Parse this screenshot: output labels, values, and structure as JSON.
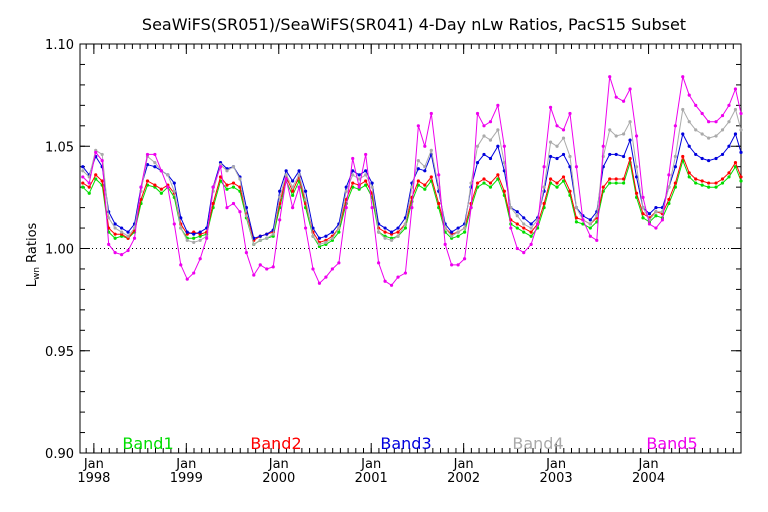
{
  "chart_data": {
    "type": "line",
    "title": "SeaWiFS(SR051)/SeaWiFS(SR041) 4-Day nLw Ratios, PacS15 Subset",
    "ylabel": "Lwn Ratios",
    "ylabel_main": "L",
    "ylabel_sub": "wn",
    "ylabel_rest": " Ratios",
    "xlabel": "",
    "xlim": [
      1997.85,
      2005.0
    ],
    "ylim": [
      0.9,
      1.1
    ],
    "yticks": [
      "0.90",
      "0.95",
      "1.00",
      "1.05",
      "1.10"
    ],
    "ytick_values": [
      0.9,
      0.95,
      1.0,
      1.05,
      1.1
    ],
    "xticks": [
      {
        "month": "Jan",
        "year": "1998",
        "x": 1998.0
      },
      {
        "month": "Jan",
        "year": "1999",
        "x": 1999.0
      },
      {
        "month": "Jan",
        "year": "2000",
        "x": 2000.0
      },
      {
        "month": "Jan",
        "year": "2001",
        "x": 2001.0
      },
      {
        "month": "Jan",
        "year": "2002",
        "x": 2002.0
      },
      {
        "month": "Jan",
        "year": "2003",
        "x": 2003.0
      },
      {
        "month": "Jan",
        "year": "2004",
        "x": 2004.0
      }
    ],
    "reference_line": {
      "y": 1.0,
      "style": "dotted"
    },
    "grid": false,
    "x": [
      1997.88,
      1997.95,
      1998.02,
      1998.09,
      1998.16,
      1998.23,
      1998.3,
      1998.37,
      1998.44,
      1998.51,
      1998.58,
      1998.66,
      1998.73,
      1998.8,
      1998.87,
      1998.94,
      1999.01,
      1999.08,
      1999.15,
      1999.22,
      1999.29,
      1999.37,
      1999.44,
      1999.51,
      1999.58,
      1999.65,
      1999.73,
      1999.8,
      1999.87,
      1999.94,
      2000.01,
      2000.08,
      2000.15,
      2000.22,
      2000.29,
      2000.37,
      2000.44,
      2000.51,
      2000.58,
      2000.65,
      2000.73,
      2000.8,
      2000.87,
      2000.94,
      2001.01,
      2001.08,
      2001.15,
      2001.22,
      2001.29,
      2001.37,
      2001.44,
      2001.51,
      2001.58,
      2001.65,
      2001.73,
      2001.8,
      2001.87,
      2001.94,
      2002.01,
      2002.08,
      2002.15,
      2002.22,
      2002.29,
      2002.37,
      2002.44,
      2002.51,
      2002.58,
      2002.65,
      2002.73,
      2002.8,
      2002.87,
      2002.94,
      2003.01,
      2003.08,
      2003.15,
      2003.22,
      2003.29,
      2003.37,
      2003.44,
      2003.51,
      2003.58,
      2003.65,
      2003.73,
      2003.8,
      2003.87,
      2003.94,
      2004.01,
      2004.08,
      2004.15,
      2004.22,
      2004.29,
      2004.37,
      2004.44,
      2004.51,
      2004.58,
      2004.65,
      2004.73,
      2004.8,
      2004.87,
      2004.94,
      2005.0
    ],
    "series": [
      {
        "name": "Band1",
        "color": "#00dd00",
        "values": [
          1.03,
          1.027,
          1.034,
          1.031,
          1.008,
          1.005,
          1.006,
          1.005,
          1.008,
          1.022,
          1.031,
          1.03,
          1.027,
          1.03,
          1.025,
          1.01,
          1.005,
          1.005,
          1.006,
          1.007,
          1.02,
          1.033,
          1.029,
          1.03,
          1.028,
          1.015,
          1.002,
          1.004,
          1.005,
          1.006,
          1.02,
          1.033,
          1.026,
          1.033,
          1.02,
          1.006,
          1.001,
          1.002,
          1.004,
          1.008,
          1.022,
          1.03,
          1.029,
          1.031,
          1.025,
          1.008,
          1.006,
          1.005,
          1.006,
          1.01,
          1.023,
          1.031,
          1.029,
          1.033,
          1.02,
          1.008,
          1.005,
          1.006,
          1.008,
          1.02,
          1.03,
          1.032,
          1.03,
          1.034,
          1.026,
          1.012,
          1.01,
          1.008,
          1.006,
          1.01,
          1.02,
          1.032,
          1.03,
          1.033,
          1.026,
          1.013,
          1.012,
          1.01,
          1.013,
          1.028,
          1.032,
          1.032,
          1.032,
          1.042,
          1.025,
          1.015,
          1.013,
          1.016,
          1.015,
          1.022,
          1.03,
          1.043,
          1.035,
          1.032,
          1.031,
          1.03,
          1.03,
          1.032,
          1.035,
          1.04,
          1.033
        ]
      },
      {
        "name": "Band2",
        "color": "#ff0000",
        "values": [
          1.032,
          1.03,
          1.036,
          1.033,
          1.01,
          1.007,
          1.007,
          1.005,
          1.009,
          1.024,
          1.033,
          1.031,
          1.029,
          1.031,
          1.027,
          1.012,
          1.007,
          1.008,
          1.007,
          1.008,
          1.022,
          1.035,
          1.031,
          1.032,
          1.03,
          1.017,
          1.004,
          1.006,
          1.007,
          1.008,
          1.022,
          1.035,
          1.028,
          1.035,
          1.022,
          1.008,
          1.003,
          1.004,
          1.006,
          1.01,
          1.024,
          1.032,
          1.031,
          1.033,
          1.027,
          1.01,
          1.008,
          1.007,
          1.008,
          1.012,
          1.025,
          1.033,
          1.031,
          1.035,
          1.022,
          1.01,
          1.007,
          1.008,
          1.01,
          1.022,
          1.032,
          1.034,
          1.032,
          1.036,
          1.028,
          1.014,
          1.012,
          1.01,
          1.008,
          1.012,
          1.022,
          1.034,
          1.032,
          1.035,
          1.028,
          1.015,
          1.014,
          1.012,
          1.015,
          1.03,
          1.034,
          1.034,
          1.034,
          1.044,
          1.027,
          1.017,
          1.015,
          1.018,
          1.017,
          1.024,
          1.032,
          1.045,
          1.037,
          1.034,
          1.033,
          1.032,
          1.032,
          1.034,
          1.037,
          1.042,
          1.035
        ]
      },
      {
        "name": "Band3",
        "color": "#0000dd",
        "values": [
          1.04,
          1.036,
          1.045,
          1.04,
          1.018,
          1.012,
          1.01,
          1.008,
          1.012,
          1.03,
          1.041,
          1.04,
          1.038,
          1.036,
          1.032,
          1.015,
          1.008,
          1.007,
          1.008,
          1.01,
          1.03,
          1.042,
          1.039,
          1.04,
          1.035,
          1.02,
          1.005,
          1.006,
          1.007,
          1.009,
          1.028,
          1.038,
          1.033,
          1.038,
          1.028,
          1.01,
          1.005,
          1.006,
          1.008,
          1.012,
          1.03,
          1.038,
          1.036,
          1.038,
          1.032,
          1.012,
          1.01,
          1.008,
          1.01,
          1.015,
          1.032,
          1.039,
          1.038,
          1.046,
          1.028,
          1.012,
          1.008,
          1.01,
          1.012,
          1.03,
          1.042,
          1.046,
          1.044,
          1.05,
          1.038,
          1.02,
          1.018,
          1.015,
          1.012,
          1.015,
          1.028,
          1.045,
          1.044,
          1.046,
          1.04,
          1.02,
          1.016,
          1.014,
          1.018,
          1.04,
          1.046,
          1.046,
          1.045,
          1.053,
          1.035,
          1.02,
          1.017,
          1.02,
          1.02,
          1.03,
          1.04,
          1.056,
          1.05,
          1.046,
          1.044,
          1.043,
          1.044,
          1.046,
          1.05,
          1.056,
          1.047
        ]
      },
      {
        "name": "Band4",
        "color": "#aaaaaa",
        "values": [
          1.038,
          1.035,
          1.048,
          1.046,
          1.015,
          1.01,
          1.008,
          1.006,
          1.01,
          1.028,
          1.045,
          1.042,
          1.038,
          1.036,
          1.028,
          1.01,
          1.004,
          1.003,
          1.004,
          1.006,
          1.028,
          1.041,
          1.038,
          1.04,
          1.034,
          1.016,
          1.002,
          1.004,
          1.005,
          1.007,
          1.025,
          1.036,
          1.03,
          1.036,
          1.024,
          1.006,
          1.002,
          1.003,
          1.005,
          1.01,
          1.028,
          1.036,
          1.034,
          1.036,
          1.03,
          1.008,
          1.005,
          1.004,
          1.006,
          1.012,
          1.03,
          1.043,
          1.04,
          1.048,
          1.03,
          1.01,
          1.006,
          1.008,
          1.01,
          1.032,
          1.05,
          1.055,
          1.053,
          1.058,
          1.042,
          1.02,
          1.016,
          1.012,
          1.01,
          1.014,
          1.03,
          1.052,
          1.05,
          1.054,
          1.045,
          1.02,
          1.014,
          1.012,
          1.016,
          1.045,
          1.058,
          1.055,
          1.056,
          1.062,
          1.04,
          1.02,
          1.014,
          1.018,
          1.018,
          1.03,
          1.045,
          1.068,
          1.062,
          1.058,
          1.056,
          1.054,
          1.055,
          1.058,
          1.062,
          1.068,
          1.058
        ]
      },
      {
        "name": "Band5",
        "color": "#ee00ee",
        "values": [
          1.035,
          1.032,
          1.047,
          1.043,
          1.002,
          0.998,
          0.997,
          0.999,
          1.005,
          1.03,
          1.046,
          1.046,
          1.038,
          1.03,
          1.012,
          0.992,
          0.985,
          0.988,
          0.995,
          1.005,
          1.03,
          1.04,
          1.02,
          1.022,
          1.018,
          0.998,
          0.987,
          0.992,
          0.99,
          0.991,
          1.014,
          1.034,
          1.02,
          1.03,
          1.01,
          0.99,
          0.983,
          0.986,
          0.99,
          0.993,
          1.02,
          1.044,
          1.03,
          1.046,
          1.02,
          0.993,
          0.984,
          0.982,
          0.986,
          0.988,
          1.02,
          1.06,
          1.05,
          1.066,
          1.036,
          1.002,
          0.992,
          0.992,
          0.995,
          1.02,
          1.066,
          1.06,
          1.062,
          1.07,
          1.05,
          1.01,
          1.0,
          0.998,
          1.002,
          1.012,
          1.04,
          1.069,
          1.06,
          1.058,
          1.066,
          1.04,
          1.014,
          1.006,
          1.004,
          1.05,
          1.084,
          1.074,
          1.072,
          1.078,
          1.055,
          1.025,
          1.012,
          1.01,
          1.014,
          1.036,
          1.06,
          1.084,
          1.075,
          1.07,
          1.066,
          1.062,
          1.062,
          1.065,
          1.07,
          1.078,
          1.066
        ]
      }
    ],
    "legend": {
      "placement": "bottom",
      "entries": [
        "Band1",
        "Band2",
        "Band3",
        "Band4",
        "Band5"
      ]
    }
  }
}
